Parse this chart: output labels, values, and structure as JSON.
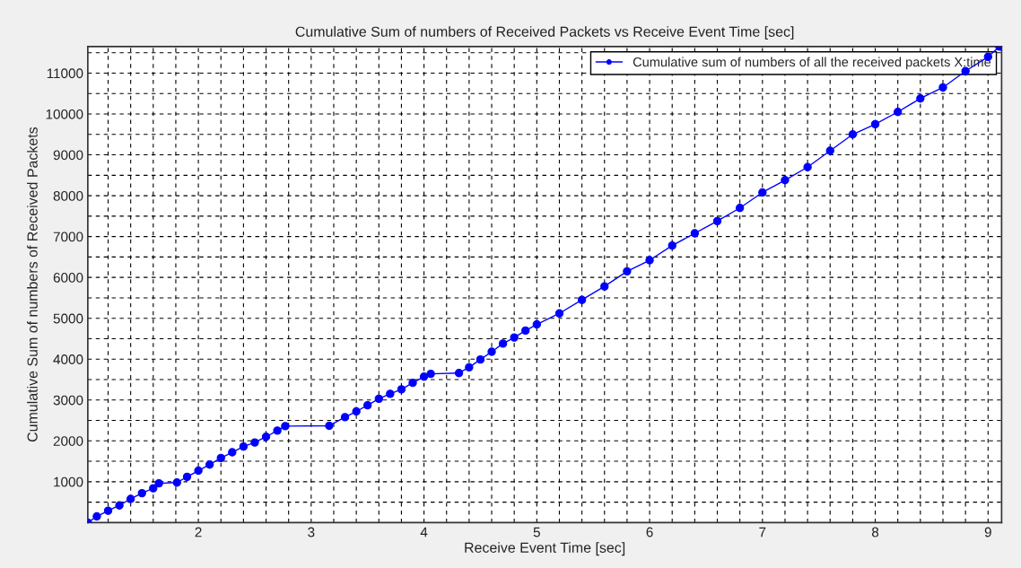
{
  "chart_data": {
    "type": "line",
    "title": "Cumulative Sum of numbers of Received Packets vs Receive Event Time [sec]",
    "xlabel": "Receive Event Time [sec]",
    "ylabel": "Cumulative Sum of numbers of Received Packets",
    "x": [
      1.02,
      1.1,
      1.2,
      1.3,
      1.4,
      1.5,
      1.6,
      1.65,
      1.81,
      1.9,
      2.0,
      2.1,
      2.2,
      2.3,
      2.4,
      2.5,
      2.6,
      2.7,
      2.77,
      3.16,
      3.3,
      3.4,
      3.5,
      3.6,
      3.7,
      3.8,
      3.9,
      4.0,
      4.06,
      4.31,
      4.4,
      4.5,
      4.6,
      4.7,
      4.8,
      4.9,
      5.0,
      5.2,
      5.4,
      5.6,
      5.8,
      6.0,
      6.2,
      6.4,
      6.6,
      6.8,
      7.0,
      7.2,
      7.4,
      7.6,
      7.8,
      8.0,
      8.2,
      8.4,
      8.6,
      8.8,
      9.0,
      9.1
    ],
    "series": [
      {
        "name": "Cumulative sum of numbers of all the received packets X:time",
        "color": "#0000ff",
        "values": [
          0,
          150,
          290,
          420,
          580,
          720,
          840,
          960,
          980,
          1120,
          1270,
          1420,
          1580,
          1720,
          1860,
          1960,
          2100,
          2250,
          2360,
          2370,
          2580,
          2720,
          2870,
          3030,
          3150,
          3260,
          3420,
          3570,
          3640,
          3660,
          3800,
          3990,
          4180,
          4380,
          4530,
          4700,
          4850,
          5120,
          5450,
          5780,
          6150,
          6420,
          6780,
          7080,
          7380,
          7700,
          8080,
          8380,
          8700,
          9100,
          9500,
          9750,
          10050,
          10380,
          10650,
          11050,
          11400,
          11650
        ]
      }
    ],
    "xlim": [
      1.02,
      9.12
    ],
    "ylim": [
      0,
      11650
    ],
    "xticks": [
      {
        "value": 1.2,
        "label": null
      },
      {
        "value": 1.4,
        "label": null
      },
      {
        "value": 1.6,
        "label": null
      },
      {
        "value": 1.8,
        "label": null
      },
      2,
      {
        "value": 2.2,
        "label": null
      },
      {
        "value": 2.4,
        "label": null
      },
      {
        "value": 2.6,
        "label": null
      },
      {
        "value": 2.8,
        "label": null
      },
      3,
      {
        "value": 3.2,
        "label": null
      },
      {
        "value": 3.4,
        "label": null
      },
      {
        "value": 3.6,
        "label": null
      },
      {
        "value": 3.8,
        "label": null
      },
      4,
      {
        "value": 4.2,
        "label": null
      },
      {
        "value": 4.4,
        "label": null
      },
      {
        "value": 4.6,
        "label": null
      },
      {
        "value": 4.8,
        "label": null
      },
      5,
      {
        "value": 5.2,
        "label": null
      },
      {
        "value": 5.4,
        "label": null
      },
      {
        "value": 5.6,
        "label": null
      },
      {
        "value": 5.8,
        "label": null
      },
      6,
      {
        "value": 6.2,
        "label": null
      },
      {
        "value": 6.4,
        "label": null
      },
      {
        "value": 6.6,
        "label": null
      },
      {
        "value": 6.8,
        "label": null
      },
      7,
      {
        "value": 7.2,
        "label": null
      },
      {
        "value": 7.4,
        "label": null
      },
      {
        "value": 7.6,
        "label": null
      },
      {
        "value": 7.8,
        "label": null
      },
      8,
      {
        "value": 8.2,
        "label": null
      },
      {
        "value": 8.4,
        "label": null
      },
      {
        "value": 8.6,
        "label": null
      },
      {
        "value": 8.8,
        "label": null
      },
      9
    ],
    "yticks": [
      {
        "value": 500,
        "label": null
      },
      1000,
      {
        "value": 1500,
        "label": null
      },
      2000,
      {
        "value": 2500,
        "label": null
      },
      3000,
      {
        "value": 3500,
        "label": null
      },
      4000,
      {
        "value": 4500,
        "label": null
      },
      5000,
      {
        "value": 5500,
        "label": null
      },
      6000,
      {
        "value": 6500,
        "label": null
      },
      7000,
      {
        "value": 7500,
        "label": null
      },
      8000,
      {
        "value": 8500,
        "label": null
      },
      9000,
      {
        "value": 9500,
        "label": null
      },
      10000,
      {
        "value": 10500,
        "label": null
      },
      11000,
      {
        "value": 11500,
        "label": null
      }
    ],
    "grid": true,
    "legend": "top right",
    "marker": "circle",
    "line_style": "solid"
  }
}
